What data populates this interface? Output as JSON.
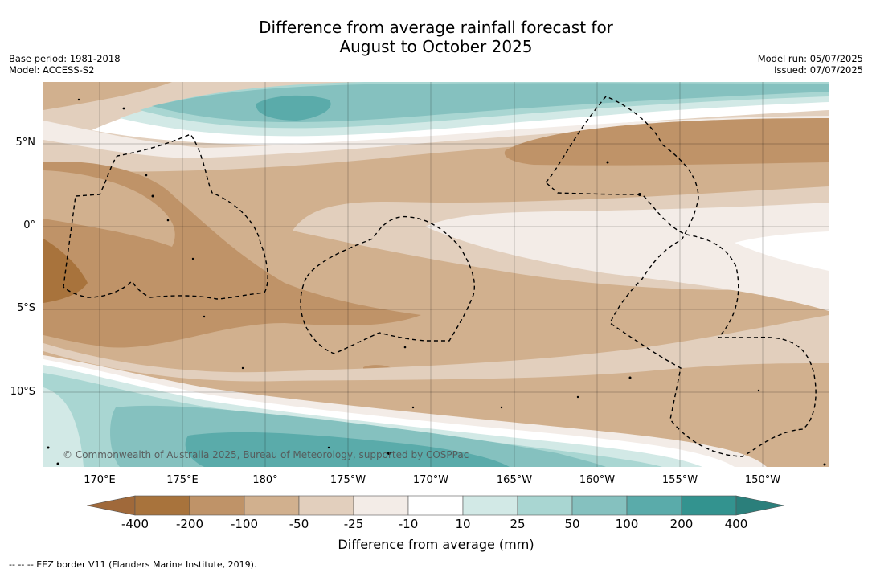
{
  "header": {
    "title_line1": "Difference from average rainfall forecast for",
    "title_line2": "August to October 2025",
    "base_period": "Base period: 1981-2018",
    "model": "Model: ACCESS-S2",
    "model_run": "Model run: 05/07/2025",
    "issued": "Issued: 07/07/2025"
  },
  "map": {
    "lat_labels": [
      "5°N",
      "0°",
      "5°S",
      "10°S"
    ],
    "lon_labels": [
      "170°E",
      "175°E",
      "180°",
      "175°W",
      "170°W",
      "165°W",
      "160°W",
      "155°W",
      "150°W"
    ],
    "copyright": "© Commonwealth of Australia 2025, Bureau of Meteorology, supported by COSPPac",
    "colors": {
      "n400": "#a8733c",
      "n200": "#bf9368",
      "n100": "#d1b08e",
      "n50": "#e2cfbd",
      "n25": "#f3ece7",
      "n10": "#ffffff",
      "p10": "#ffffff",
      "p25": "#d2e9e6",
      "p50": "#a9d6d2",
      "p100": "#85c1bf",
      "p200": "#5aabaa",
      "p400": "#33938f"
    }
  },
  "colorbar": {
    "ticks": [
      "-400",
      "-200",
      "-100",
      "-50",
      "-25",
      "-10",
      "10",
      "25",
      "50",
      "100",
      "200",
      "400"
    ],
    "label": "Difference from average (mm)"
  },
  "footnote": "--  --  -- EEZ border V11 (Flanders Marine Institute, 2019)."
}
